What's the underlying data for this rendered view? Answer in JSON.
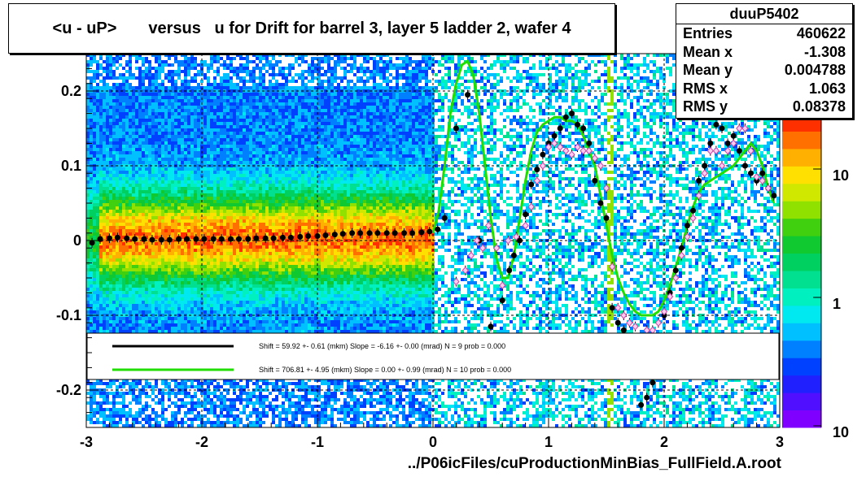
{
  "title": "<u - uP>       versus   u for Drift for barrel 3, layer 5 ladder 2, wafer 4",
  "xlabel": "../P06icFiles/cuProductionMinBias_FullField.A.root",
  "stats": {
    "name": "duuP5402",
    "rows": [
      {
        "label": "Entries",
        "value": "460622"
      },
      {
        "label": "Mean x",
        "value": "-1.308"
      },
      {
        "label": "Mean y",
        "value": "0.004788"
      },
      {
        "label": "RMS x",
        "value": "1.063"
      },
      {
        "label": "RMS y",
        "value": "0.08378"
      }
    ]
  },
  "legend": [
    {
      "color": "#000000",
      "text": "Shift =    59.92 +- 0.61 (mkm) Slope =    -6.16 +- 0.00 (mrad)  N = 9 prob = 0.000"
    },
    {
      "color": "#22dd00",
      "text": "Shift =   706.81 +- 4.95 (mkm) Slope =     0.00 +- 0.99 (mrad)  N = 10 prob = 0.000"
    }
  ],
  "colors": {
    "palette": [
      "#8000ff",
      "#5010ff",
      "#2020ff",
      "#0040ff",
      "#0080ff",
      "#00c0ff",
      "#00e8f0",
      "#00f0c0",
      "#00e090",
      "#00d060",
      "#10c830",
      "#40d010",
      "#90e000",
      "#d0e800",
      "#ffe000",
      "#ffb000",
      "#ff7000",
      "#ff3000"
    ],
    "fit_line": "#22dd00"
  },
  "chart_data": {
    "type": "heatmap",
    "xlim": [
      -3,
      3
    ],
    "ylim": [
      -0.25,
      0.25
    ],
    "x_ticks": [
      -3,
      -2,
      -1,
      0,
      1,
      2,
      3
    ],
    "x_tick_labels": [
      "-3",
      "-2",
      "-1",
      "0",
      "1",
      "2",
      "3"
    ],
    "y_ticks": [
      -0.2,
      -0.1,
      0,
      0.1,
      0.2
    ],
    "y_tick_labels": [
      "-0.2",
      "-0.1",
      "0",
      "0.1",
      "0.2"
    ],
    "z_scale": "log",
    "z_tick_labels": [
      "10",
      "1",
      "10"
    ],
    "grid": true,
    "series": [
      {
        "kind": "profile-points",
        "color": "#000000",
        "x": [
          -2.95,
          -2.88,
          -2.8,
          -2.73,
          -2.65,
          -2.58,
          -2.5,
          -2.43,
          -2.35,
          -2.28,
          -2.2,
          -2.13,
          -2.05,
          -1.98,
          -1.9,
          -1.83,
          -1.75,
          -1.68,
          -1.6,
          -1.53,
          -1.45,
          -1.38,
          -1.3,
          -1.23,
          -1.15,
          -1.08,
          -1.0,
          -0.93,
          -0.85,
          -0.78,
          -0.7,
          -0.63,
          -0.55,
          -0.48,
          -0.4,
          -0.33,
          -0.25,
          -0.18,
          -0.1,
          -0.03,
          0.04,
          0.1,
          0.2,
          0.3,
          0.4,
          0.5,
          0.6,
          0.66,
          0.7,
          0.75,
          0.8,
          0.85,
          0.9,
          0.95,
          1.0,
          1.05,
          1.1,
          1.15,
          1.2,
          1.25,
          1.3,
          1.35,
          1.4,
          1.45,
          1.5,
          1.55,
          1.6,
          1.65,
          1.7,
          1.8,
          1.85,
          1.9,
          1.95,
          2.0,
          2.05,
          2.1,
          2.15,
          2.2,
          2.25,
          2.3,
          2.35,
          2.4,
          2.45,
          2.5,
          2.55,
          2.6,
          2.65,
          2.7,
          2.75,
          2.8,
          2.85,
          2.9,
          2.95
        ],
        "y": [
          -0.003,
          0.002,
          0.003,
          0.004,
          0.003,
          0.002,
          0.002,
          0.001,
          0.001,
          0.001,
          0.002,
          0.002,
          0.002,
          0.002,
          0.002,
          0.002,
          0.002,
          0.002,
          0.002,
          0.003,
          0.003,
          0.003,
          0.004,
          0.004,
          0.005,
          0.006,
          0.006,
          0.007,
          0.008,
          0.009,
          0.01,
          0.01,
          0.01,
          0.01,
          0.01,
          0.01,
          0.01,
          0.01,
          0.011,
          0.012,
          0.015,
          0.03,
          0.15,
          0.195,
          0.0,
          -0.115,
          -0.08,
          -0.04,
          -0.02,
          0.0,
          0.035,
          0.075,
          0.095,
          0.115,
          0.13,
          0.14,
          0.15,
          0.165,
          0.17,
          0.155,
          0.15,
          0.13,
          0.08,
          0.05,
          0.03,
          -0.09,
          -0.11,
          -0.12,
          -0.15,
          -0.22,
          -0.21,
          -0.19,
          -0.14,
          -0.1,
          -0.07,
          -0.04,
          -0.01,
          0.02,
          0.04,
          0.08,
          0.1,
          0.13,
          0.155,
          0.15,
          0.13,
          0.14,
          0.12,
          0.1,
          0.09,
          0.08,
          0.09,
          0.07,
          0.06
        ]
      },
      {
        "kind": "profile-points",
        "color": "#ff66cc",
        "x": [
          0.2,
          0.28,
          0.33,
          0.38,
          0.43,
          0.48,
          0.55,
          0.6,
          0.65,
          0.72,
          0.8,
          0.85,
          0.9,
          0.95,
          1.0,
          1.05,
          1.1,
          1.15,
          1.2,
          1.25,
          1.3,
          1.35,
          1.4,
          1.45,
          1.5,
          1.55,
          1.6,
          1.65,
          1.7,
          1.75,
          1.8,
          1.85,
          1.9,
          1.95,
          2.0,
          2.05,
          2.1,
          2.15,
          2.2,
          2.25,
          2.3,
          2.35,
          2.4,
          2.45,
          2.5,
          2.55,
          2.6,
          2.65,
          2.7,
          2.75,
          2.8,
          2.85,
          2.9
        ],
        "y": [
          -0.055,
          -0.04,
          -0.02,
          0.0,
          -0.01,
          0.02,
          -0.01,
          -0.06,
          0.0,
          0.005,
          0.02,
          0.045,
          0.08,
          0.1,
          0.125,
          0.13,
          0.125,
          0.12,
          0.115,
          0.125,
          0.12,
          0.12,
          0.11,
          0.1,
          0.07,
          -0.035,
          -0.09,
          -0.1,
          -0.11,
          -0.115,
          -0.13,
          -0.12,
          -0.12,
          -0.11,
          -0.095,
          -0.075,
          -0.05,
          -0.02,
          0.005,
          0.03,
          0.06,
          0.09,
          0.12,
          0.12,
          0.1,
          0.12,
          0.13,
          0.15,
          0.15,
          0.12,
          0.085,
          0.08,
          0.07
        ]
      },
      {
        "kind": "fit-curve",
        "color": "#22dd00",
        "x": [
          0.0,
          0.05,
          0.1,
          0.15,
          0.2,
          0.25,
          0.3,
          0.35,
          0.4,
          0.45,
          0.5,
          0.55,
          0.6,
          0.65,
          0.7,
          0.75,
          0.8,
          0.85,
          0.9,
          0.95,
          1.0,
          1.05,
          1.1,
          1.15,
          1.2,
          1.25,
          1.3,
          1.35,
          1.4,
          1.45,
          1.5,
          1.55,
          1.6,
          1.65,
          1.7,
          1.75,
          1.8,
          1.85,
          1.9,
          1.95,
          2.0,
          2.05,
          2.1,
          2.15,
          2.2,
          2.25,
          2.3,
          2.35,
          2.4,
          2.45,
          2.5,
          2.55,
          2.6,
          2.65,
          2.7,
          2.75,
          2.8,
          2.85,
          2.9,
          2.95
        ],
        "y": [
          0.01,
          0.04,
          0.1,
          0.17,
          0.21,
          0.235,
          0.24,
          0.22,
          0.17,
          0.1,
          0.03,
          -0.025,
          -0.05,
          -0.05,
          -0.02,
          0.03,
          0.08,
          0.12,
          0.145,
          0.155,
          0.16,
          0.165,
          0.165,
          0.16,
          0.16,
          0.155,
          0.14,
          0.12,
          0.1,
          0.06,
          0.02,
          -0.02,
          -0.05,
          -0.07,
          -0.085,
          -0.095,
          -0.1,
          -0.1,
          -0.1,
          -0.095,
          -0.08,
          -0.06,
          -0.035,
          -0.01,
          0.02,
          0.045,
          0.065,
          0.075,
          0.08,
          0.085,
          0.09,
          0.095,
          0.1,
          0.11,
          0.12,
          0.13,
          0.12,
          0.1,
          0.07,
          0.05
        ]
      }
    ]
  }
}
